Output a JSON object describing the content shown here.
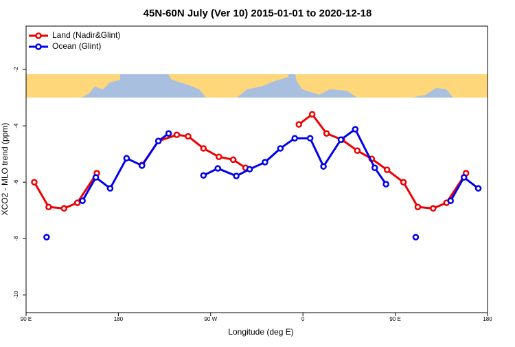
{
  "chart_data": {
    "type": "line",
    "title": "45N-60N July (Ver 10)   2015-01-01 to 2020-12-18",
    "xlabel": "Longitude (deg E)",
    "ylabel": "XCO2 - MLO trend (ppm)",
    "xlim": [
      90,
      540
    ],
    "ylim": [
      -10.63,
      -0.46
    ],
    "xticks": [
      {
        "value": 90,
        "label": "90 E"
      },
      180,
      {
        "value": 270,
        "label": "90 W"
      },
      {
        "value": 360,
        "label": "0"
      },
      {
        "value": 450,
        "label": "90 E"
      },
      {
        "value": 540,
        "label": "180"
      }
    ],
    "yticks": [
      -2,
      -4,
      -6,
      -8,
      -10
    ],
    "legend": "top-left",
    "series": [
      {
        "name": "Land (Nadir&Glint)",
        "color": "#ee0000",
        "x": [
          98,
          112,
          127,
          140,
          159,
          null,
          203,
          219,
          237,
          248,
          263,
          278,
          292,
          304,
          null,
          356,
          369,
          383,
          398,
          413,
          427,
          442,
          458,
          472,
          487,
          500,
          519
        ],
        "values": [
          -6.0,
          -6.88,
          -6.93,
          -6.73,
          -5.68,
          null,
          -5.39,
          -4.54,
          -4.32,
          -4.37,
          -4.8,
          -5.1,
          -5.2,
          -5.49,
          null,
          -3.95,
          -3.59,
          -4.27,
          -4.49,
          -4.88,
          -5.17,
          -5.56,
          -6.0,
          -6.88,
          -6.93,
          -6.73,
          -5.68
        ]
      },
      {
        "name": "Ocean (Glint)",
        "color": "#0000ee",
        "x": [
          110,
          null,
          145,
          158,
          172,
          188,
          203,
          219,
          229,
          null,
          263,
          277,
          295,
          308,
          323,
          338,
          352,
          367,
          380,
          397,
          411,
          430,
          441,
          null,
          470,
          null,
          504,
          517,
          531
        ],
        "values": [
          -7.95,
          null,
          -6.66,
          -5.83,
          -6.22,
          -5.15,
          -5.41,
          -4.54,
          -4.27,
          null,
          -5.76,
          -5.51,
          -5.78,
          -5.54,
          -5.29,
          -4.8,
          -4.44,
          -4.44,
          -5.44,
          -4.49,
          -4.12,
          -5.49,
          -6.07,
          null,
          -7.95,
          null,
          -6.66,
          -5.83,
          -6.22
        ]
      }
    ]
  }
}
